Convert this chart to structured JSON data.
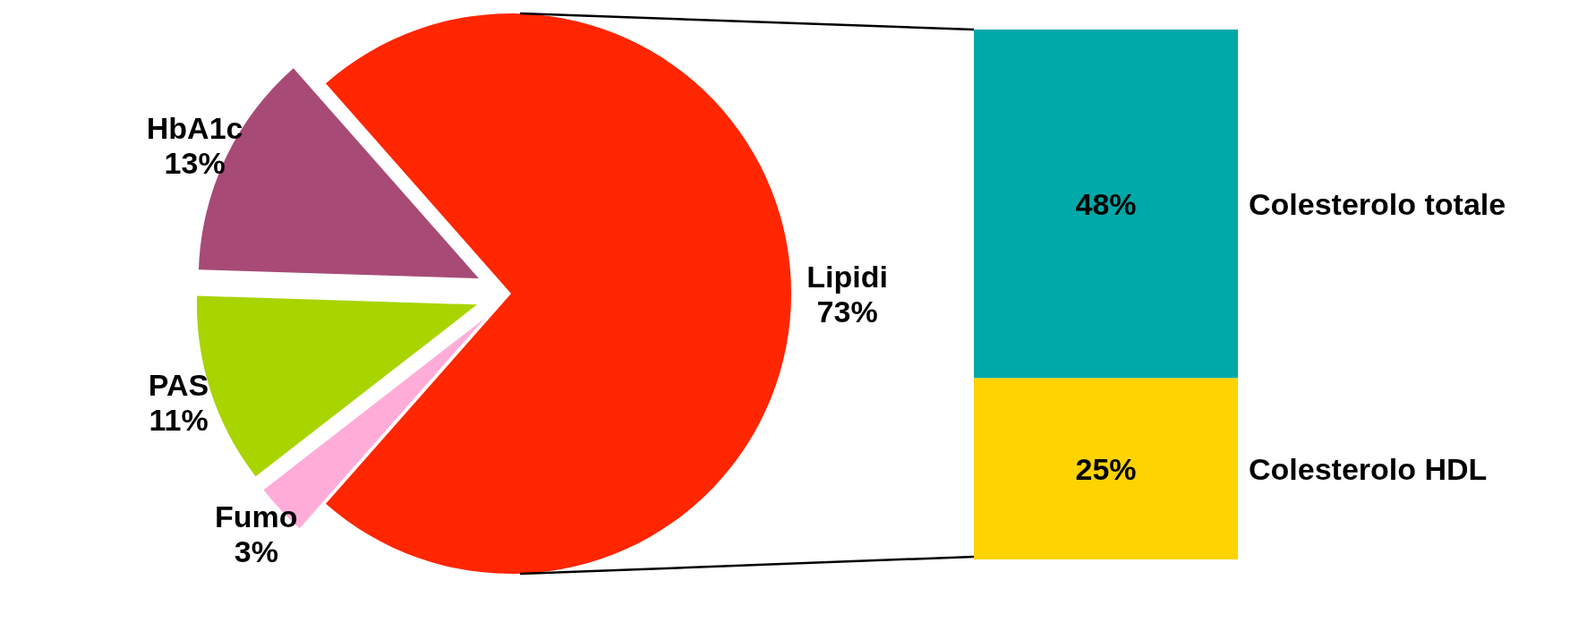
{
  "chart_data": [
    {
      "type": "pie",
      "categories": [
        "Lipidi",
        "Fumo",
        "PAS",
        "HbA1c"
      ],
      "values": [
        73,
        3,
        11,
        13
      ],
      "colors": [
        "#ff2600",
        "#ffadd8",
        "#a8d400",
        "#a84a76"
      ],
      "value_labels": [
        "73%",
        "3%",
        "11%",
        "13%"
      ]
    },
    {
      "type": "bar",
      "stacked": true,
      "categories": [
        null
      ],
      "series": [
        {
          "name": "Colesterolo HDL",
          "color": "#ffd300",
          "values": [
            25
          ],
          "value_labels": [
            "25%"
          ]
        },
        {
          "name": "Colesterolo totale",
          "color": "#00a9a9",
          "values": [
            48
          ],
          "value_labels": [
            "48%"
          ]
        }
      ]
    }
  ]
}
